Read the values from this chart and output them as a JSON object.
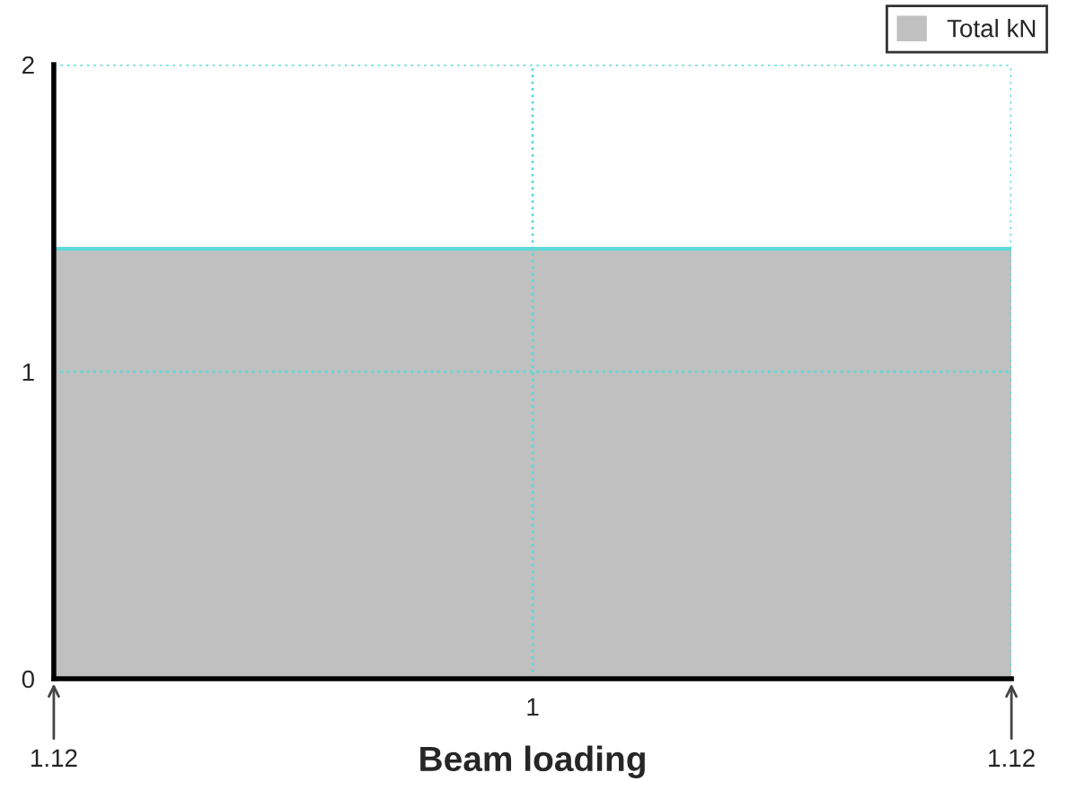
{
  "chart_data": {
    "type": "area",
    "xlabel": "Beam loading",
    "categories": [
      null,
      "1",
      null
    ],
    "series": [
      {
        "name": "Total kN",
        "color": "#c0c0c0",
        "values": [
          1.4,
          1.4,
          1.4
        ]
      }
    ],
    "ylim": [
      0,
      2
    ],
    "yticks": [
      0,
      1,
      2
    ],
    "grid": true,
    "legend": "top right",
    "annotations": [
      {
        "text": "1.12",
        "y": 0
      },
      {
        "text": "1.12",
        "y": 0
      }
    ]
  }
}
